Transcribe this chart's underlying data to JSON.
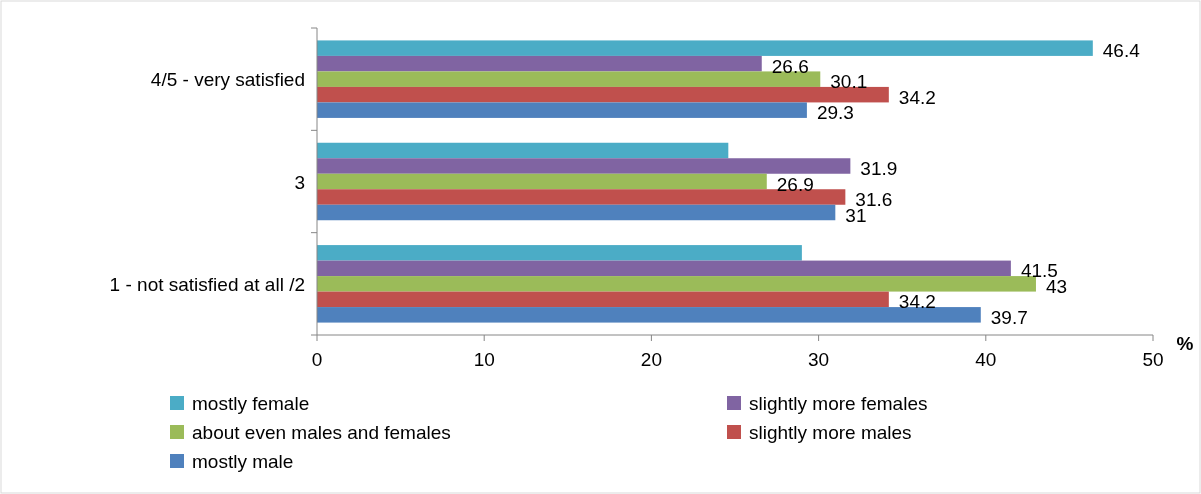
{
  "chart_data": {
    "type": "bar",
    "orientation": "horizontal",
    "xlabel": "%",
    "categories": [
      "4/5 - very satisfied",
      "3",
      "1 - not satisfied at all /2"
    ],
    "series": [
      {
        "name": "mostly female",
        "color": "#4bacc6",
        "values": [
          46.4,
          24.6,
          29.0
        ],
        "value_labels": [
          "46.4",
          null,
          null
        ]
      },
      {
        "name": "slightly more females",
        "color": "#8064a2",
        "values": [
          26.6,
          31.9,
          41.5
        ],
        "value_labels": [
          "26.6",
          "31.9",
          "41.5"
        ]
      },
      {
        "name": "about even males and females",
        "color": "#9bbb59",
        "values": [
          30.1,
          26.9,
          43
        ],
        "value_labels": [
          "30.1",
          "26.9",
          "43"
        ]
      },
      {
        "name": "slightly more males",
        "color": "#c0504d",
        "values": [
          34.2,
          31.6,
          34.2
        ],
        "value_labels": [
          "34.2",
          "31.6",
          "34.2"
        ]
      },
      {
        "name": "mostly male",
        "color": "#4f81bd",
        "values": [
          29.3,
          31,
          39.7
        ],
        "value_labels": [
          "29.3",
          "31",
          "39.7"
        ]
      }
    ],
    "xlim": [
      0,
      50
    ],
    "xticks": [
      0,
      10,
      20,
      30,
      40,
      50
    ],
    "grid": false,
    "legend": "bottom"
  }
}
